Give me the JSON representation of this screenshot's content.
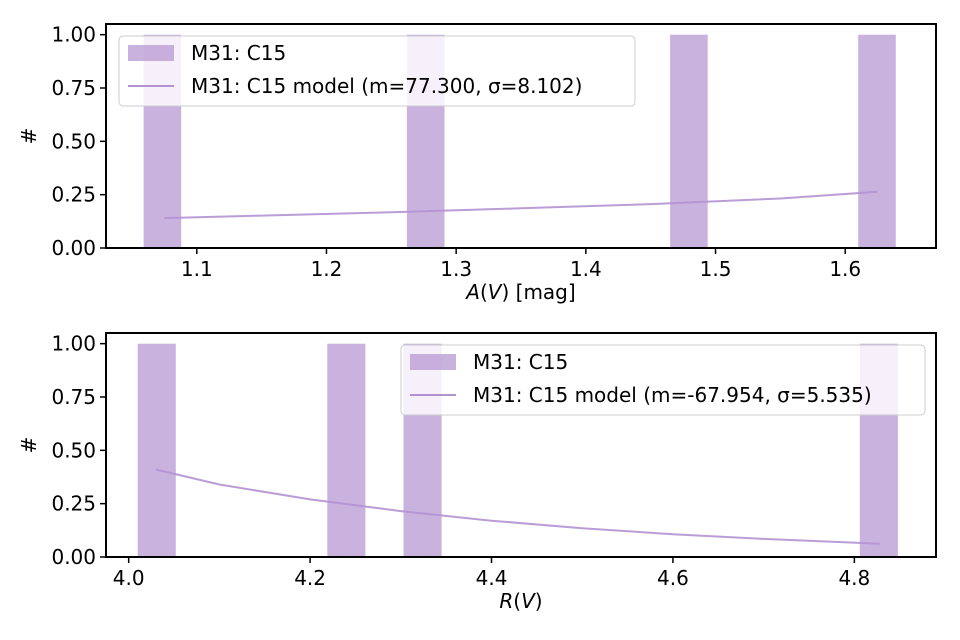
{
  "colors": {
    "bar": "#b392d1",
    "bar_alpha": 0.7,
    "line": "#b392d1",
    "axes": "#000000",
    "legend_edge": "#cccccc"
  },
  "chart_data": [
    {
      "type": "bar",
      "xlabel_italic": "A",
      "xlabel_paren_open": "(",
      "xlabel_italic2": "V",
      "xlabel_rest": ") [mag]",
      "ylabel": "#",
      "xlim": [
        1.03,
        1.67
      ],
      "ylim": [
        0,
        1.05
      ],
      "xticks": [
        1.1,
        1.2,
        1.3,
        1.4,
        1.5,
        1.6
      ],
      "xtick_labels": [
        "1.1",
        "1.2",
        "1.3",
        "1.4",
        "1.5",
        "1.6"
      ],
      "yticks": [
        0,
        0.25,
        0.5,
        0.75,
        1.0
      ],
      "ytick_labels": [
        "0.00",
        "0.25",
        "0.50",
        "0.75",
        "1.00"
      ],
      "bars": [
        {
          "x0": 1.059,
          "x1": 1.088,
          "value": 1
        },
        {
          "x0": 1.262,
          "x1": 1.291,
          "value": 1
        },
        {
          "x0": 1.465,
          "x1": 1.494,
          "value": 1
        },
        {
          "x0": 1.61,
          "x1": 1.639,
          "value": 1
        }
      ],
      "model_line": {
        "x": [
          1.075,
          1.15,
          1.25,
          1.35,
          1.45,
          1.55,
          1.625
        ],
        "y": [
          0.14,
          0.152,
          0.168,
          0.186,
          0.206,
          0.232,
          0.264
        ]
      },
      "legend": {
        "location": "upper left",
        "entries": [
          "M31: C15",
          "M31: C15 model (m=77.300, σ=8.102)"
        ]
      }
    },
    {
      "type": "bar",
      "xlabel_italic": "R",
      "xlabel_paren_open": "(",
      "xlabel_italic2": "V",
      "xlabel_rest": ")",
      "ylabel": "#",
      "xlim": [
        3.975,
        4.89
      ],
      "ylim": [
        0,
        1.05
      ],
      "xticks": [
        4.0,
        4.2,
        4.4,
        4.6,
        4.8
      ],
      "xtick_labels": [
        "4.0",
        "4.2",
        "4.4",
        "4.6",
        "4.8"
      ],
      "yticks": [
        0,
        0.25,
        0.5,
        0.75,
        1.0
      ],
      "ytick_labels": [
        "0.00",
        "0.25",
        "0.50",
        "0.75",
        "1.00"
      ],
      "bars": [
        {
          "x0": 4.01,
          "x1": 4.052,
          "value": 1
        },
        {
          "x0": 4.219,
          "x1": 4.261,
          "value": 1
        },
        {
          "x0": 4.303,
          "x1": 4.345,
          "value": 1
        },
        {
          "x0": 4.806,
          "x1": 4.848,
          "value": 1
        }
      ],
      "model_line": {
        "x": [
          4.03,
          4.1,
          4.2,
          4.3,
          4.4,
          4.5,
          4.6,
          4.7,
          4.828
        ],
        "y": [
          0.41,
          0.34,
          0.27,
          0.215,
          0.17,
          0.135,
          0.107,
          0.085,
          0.062
        ]
      },
      "legend": {
        "location": "upper right",
        "entries": [
          "M31: C15",
          "M31: C15 model (m=-67.954, σ=5.535)"
        ]
      }
    }
  ]
}
